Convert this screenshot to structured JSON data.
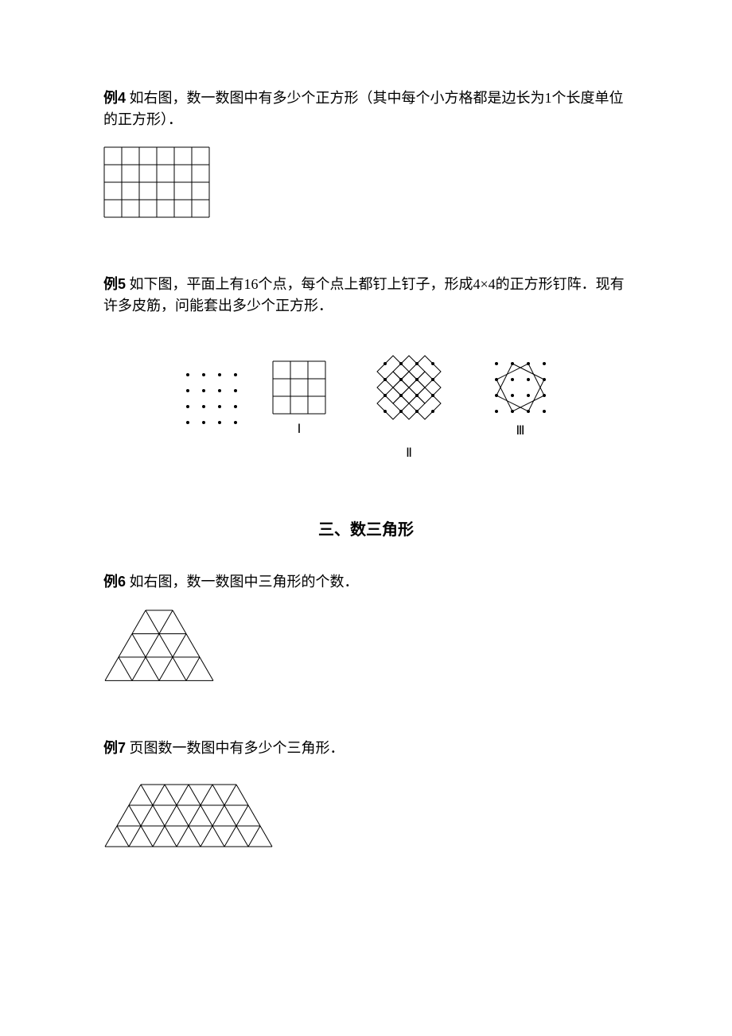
{
  "p4": {
    "label": "例4",
    "text": " 如右图，数一数图中有多少个正方形（其中每个小方格都是边长为1个长度单位的正方形）．",
    "grid": {
      "cols": 6,
      "rows": 4,
      "cell": 22,
      "stroke": "#000000",
      "bg": "#ffffff"
    }
  },
  "p5": {
    "label": "例5",
    "text": " 如下图，平面上有16个点，每个点上都钉上钉子，形成4×4的正方形钉阵．现有许多皮筋，问能套出多少个正方形．",
    "dots": {
      "n": 4,
      "gap": 20,
      "r": 2,
      "fill": "#000000"
    },
    "gridI": {
      "n": 3,
      "cell": 22,
      "stroke": "#000000"
    },
    "labels": {
      "I": "Ⅰ",
      "II": "Ⅱ",
      "III": "Ⅲ"
    },
    "stroke": "#000000",
    "dotFill": "#000000"
  },
  "section3": {
    "title": "三、数三角形"
  },
  "p6": {
    "label": "例6",
    "text": " 如右图，数一数图中三角形的个数．",
    "tri": {
      "rows": 4,
      "side": 34,
      "stroke": "#000000"
    }
  },
  "p7": {
    "label": "例7",
    "text": " 页图数一数图中有多少个三角形．",
    "tri": {
      "rowsStart": 4,
      "rowsEnd": 7,
      "side": 30,
      "stroke": "#000000"
    }
  }
}
